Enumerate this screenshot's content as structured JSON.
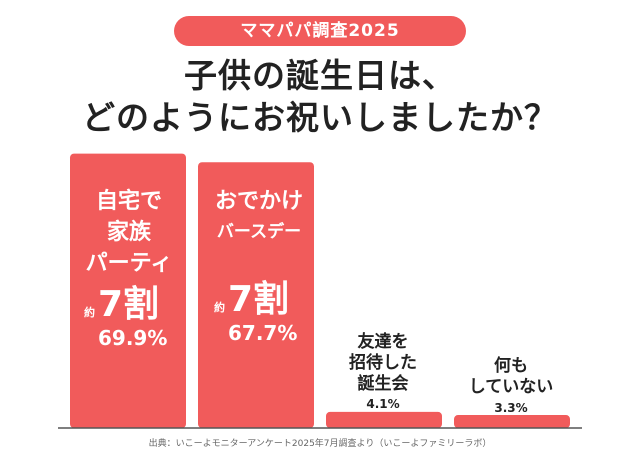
{
  "badge": "ママパパ調査2025",
  "title_line1": "子供の誕生日は、",
  "title_line2": "どのようにお祝いしましたか？",
  "source": "出典：いこーよモニターアンケート2025年7月調査より（いこーよファミリーラボ）",
  "colors": {
    "bar": "#f15b5b",
    "axis": "#555555",
    "text": "#222222"
  },
  "chart_data": {
    "type": "bar",
    "title": "子供の誕生日は、どのようにお祝いしましたか？",
    "categories": [
      "自宅で家族パーティ",
      "おでかけバースデー",
      "友達を招待した誕生会",
      "何もしていない"
    ],
    "values": [
      69.9,
      67.7,
      4.1,
      3.3
    ],
    "unit": "%",
    "ylim": [
      0,
      100
    ],
    "grid": false
  },
  "bars": [
    {
      "label_lines": [
        "自宅で",
        "家族",
        "パーティ"
      ],
      "yaku": "約",
      "wari": "7割",
      "pct": "69.9%"
    },
    {
      "label_lines": [
        "おでかけ",
        "バースデー"
      ],
      "yaku": "約",
      "wari": "7割",
      "pct": "67.7%"
    },
    {
      "label_lines": [
        "友達を",
        "招待した",
        "誕生会"
      ],
      "pct": "4.1%"
    },
    {
      "label_lines": [
        "何も",
        "していない"
      ],
      "pct": "3.3%"
    }
  ]
}
